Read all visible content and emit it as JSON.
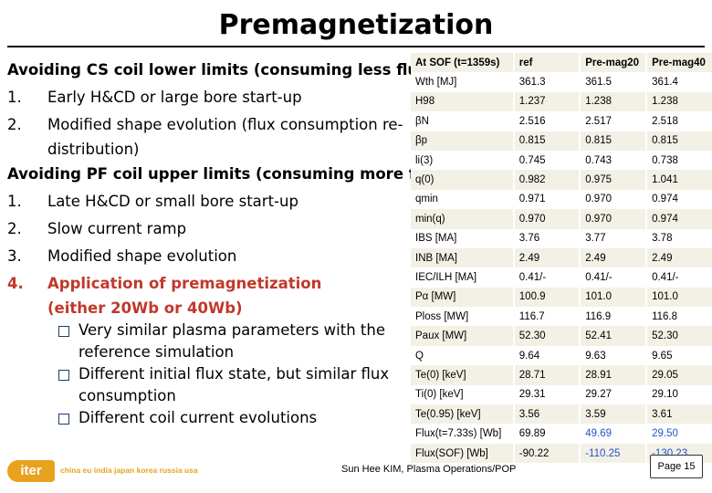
{
  "title": "Premagnetization",
  "left": {
    "heading1": "Avoiding CS coil lower limits (consuming less flux)",
    "list1": [
      {
        "num": "1.",
        "text": "Early H&CD or large bore start-up"
      },
      {
        "num": "2.",
        "text": "Modified shape evolution (flux consumption re-",
        "cont": "distribution)"
      }
    ],
    "heading2": "Avoiding PF coil upper limits (consuming more flux)",
    "list2": [
      {
        "num": "1.",
        "text": "Late H&CD or small bore start-up"
      },
      {
        "num": "2.",
        "text": "Slow current ramp"
      },
      {
        "num": "3.",
        "text": "Modified shape evolution"
      },
      {
        "num": "4.",
        "text": "Application of premagnetization",
        "cont": "(either 20Wb or 40Wb)"
      }
    ],
    "bullets": [
      {
        "text": "Very similar plasma parameters with the",
        "cont": "reference simulation"
      },
      {
        "text": "Different initial flux state, but similar flux",
        "cont": "consumption"
      },
      {
        "text": "Different coil current evolutions"
      }
    ]
  },
  "table": {
    "header": [
      "At SOF (t=1359s)",
      "ref",
      "Pre-mag20",
      "Pre-mag40"
    ],
    "rows": [
      [
        "Wth [MJ]",
        "361.3",
        "361.5",
        "361.4"
      ],
      [
        "H98",
        "1.237",
        "1.238",
        "1.238"
      ],
      [
        "βN",
        "2.516",
        "2.517",
        "2.518"
      ],
      [
        "βp",
        "0.815",
        "0.815",
        "0.815"
      ],
      [
        "li(3)",
        "0.745",
        "0.743",
        "0.738"
      ],
      [
        "q(0)",
        "0.982",
        "0.975",
        "1.041"
      ],
      [
        "qmin",
        "0.971",
        "0.970",
        "0.974"
      ],
      [
        "min(q)",
        "0.970",
        "0.970",
        "0.974"
      ],
      [
        "IBS [MA]",
        "3.76",
        "3.77",
        "3.78"
      ],
      [
        "INB [MA]",
        "2.49",
        "2.49",
        "2.49"
      ],
      [
        "IEC/ILH [MA]",
        "0.41/-",
        "0.41/-",
        "0.41/-"
      ],
      [
        "Pα [MW]",
        "100.9",
        "101.0",
        "101.0"
      ],
      [
        "Ploss [MW]",
        "116.7",
        "116.9",
        "116.8"
      ],
      [
        "Paux [MW]",
        "52.30",
        "52.41",
        "52.30"
      ],
      [
        "Q",
        "9.64",
        "9.63",
        "9.65"
      ],
      [
        "Te(0) [keV]",
        "28.71",
        "28.91",
        "29.05"
      ],
      [
        "Ti(0) [keV]",
        "29.31",
        "29.27",
        "29.10"
      ],
      [
        "Te(0.95) [keV]",
        "3.56",
        "3.59",
        "3.61"
      ],
      [
        "Flux(t=7.33s) [Wb]",
        "69.89",
        "49.69",
        "29.50"
      ],
      [
        "Flux(SOF) [Wb]",
        "-90.22",
        "-110.25",
        "-130.23"
      ]
    ],
    "highlight_color": "#2255c8"
  },
  "footer": "Sun Hee KIM, Plasma Operations/POP",
  "page": "Page 15",
  "logo": {
    "mark": "iter",
    "members": "china eu india japan korea russia usa",
    "color": "#e8a21e"
  }
}
